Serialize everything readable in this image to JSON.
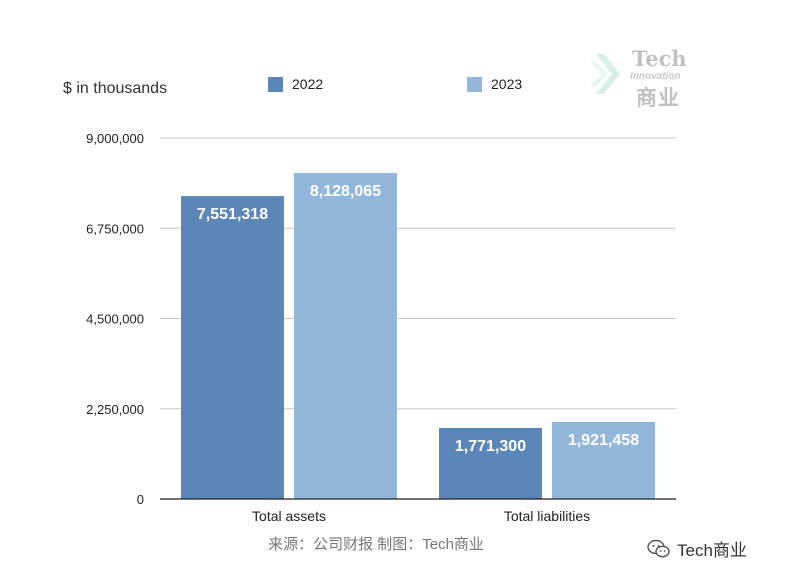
{
  "unit_label": "$ in thousands",
  "source_text": "来源：公司财报 制图：Tech商业",
  "watermark": {
    "tech": "Tech",
    "innovation": "Innovation",
    "cn": "商业"
  },
  "wechat_label": "Tech商业",
  "colors": {
    "2022": "#5b86b8",
    "2023": "#93b7db",
    "grid": "#c8c8c8",
    "axis": "#222222"
  },
  "chart_data": {
    "type": "bar",
    "categories": [
      "Total assets",
      "Total liabilities"
    ],
    "series": [
      {
        "name": "2022",
        "values": [
          7551318,
          1771300
        ],
        "labels": [
          "7,551,318",
          "1,771,300"
        ]
      },
      {
        "name": "2023",
        "values": [
          8128065,
          1921458
        ],
        "labels": [
          "8,128,065",
          "1,921,458"
        ]
      }
    ],
    "ylim": [
      0,
      9000000
    ],
    "yticks": [
      0,
      2250000,
      4500000,
      6750000,
      9000000
    ],
    "ytick_labels": [
      "0",
      "2,250,000",
      "4,500,000",
      "6,750,000",
      "9,000,000"
    ],
    "ylabel": "$ in thousands",
    "grid": true,
    "legend": "top"
  }
}
